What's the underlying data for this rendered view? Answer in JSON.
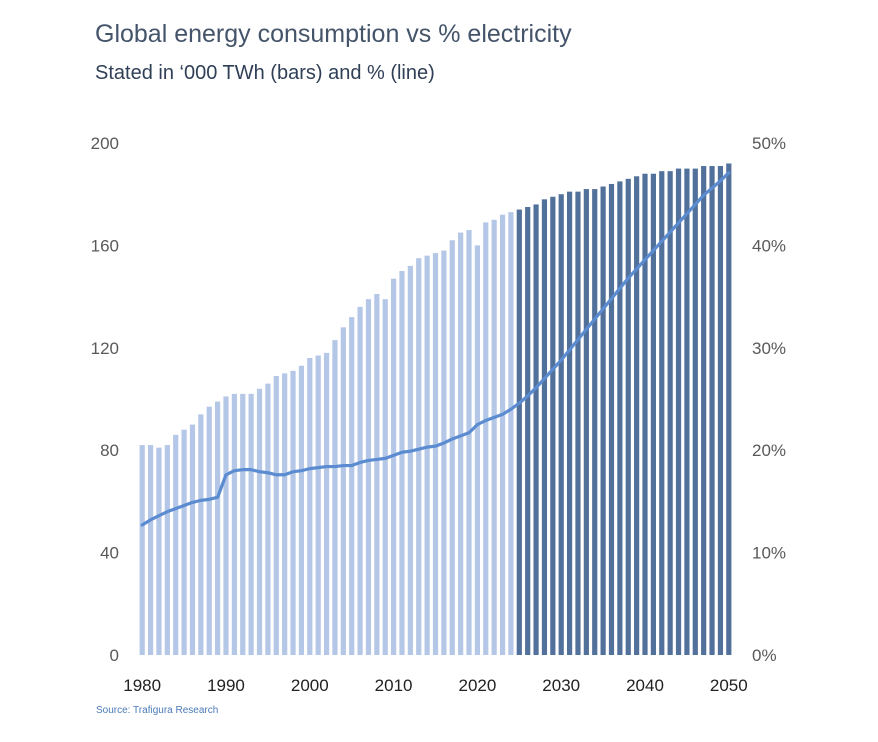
{
  "header": {
    "title": "Global energy consumption vs % electricity",
    "subtitle": "Stated in ‘000 TWh (bars) and % (line)"
  },
  "footer": {
    "source": "Source: Trafigura Research"
  },
  "colors": {
    "historical_bar": "#b4c7e7",
    "forecast_bar": "#52719a",
    "line": "#5b8bd0",
    "tick_text": "#595959"
  },
  "chart_data": {
    "type": "bar",
    "title": "Global energy consumption vs % electricity",
    "subtitle": "Stated in ‘000 TWh (bars) and % (line)",
    "x": [
      1980,
      1981,
      1982,
      1983,
      1984,
      1985,
      1986,
      1987,
      1988,
      1989,
      1990,
      1991,
      1992,
      1993,
      1994,
      1995,
      1996,
      1997,
      1998,
      1999,
      2000,
      2001,
      2002,
      2003,
      2004,
      2005,
      2006,
      2007,
      2008,
      2009,
      2010,
      2011,
      2012,
      2013,
      2014,
      2015,
      2016,
      2017,
      2018,
      2019,
      2020,
      2021,
      2022,
      2023,
      2024,
      2025,
      2026,
      2027,
      2028,
      2029,
      2030,
      2031,
      2032,
      2033,
      2034,
      2035,
      2036,
      2037,
      2038,
      2039,
      2040,
      2041,
      2042,
      2043,
      2044,
      2045,
      2046,
      2047,
      2048,
      2049,
      2050
    ],
    "forecast_start": 2025,
    "series": [
      {
        "kind": "bar",
        "axis": "left",
        "values": [
          82,
          82,
          81,
          82,
          86,
          88,
          90,
          94,
          97,
          99,
          101,
          102,
          102,
          102,
          104,
          106,
          109,
          110,
          111,
          113,
          116,
          117,
          118,
          123,
          128,
          132,
          136,
          139,
          141,
          139,
          147,
          150,
          152,
          155,
          156,
          157,
          158,
          162,
          165,
          166,
          160,
          169,
          170,
          172,
          173,
          174,
          175,
          176,
          178,
          179,
          180,
          181,
          181,
          182,
          182,
          183,
          184,
          185,
          186,
          187,
          188,
          188,
          189,
          189,
          190,
          190,
          190,
          191,
          191,
          191,
          192
        ]
      },
      {
        "kind": "line",
        "axis": "right",
        "values": [
          12.7,
          13.2,
          13.6,
          14.0,
          14.3,
          14.6,
          14.9,
          15.1,
          15.2,
          15.4,
          17.6,
          18.0,
          18.1,
          18.1,
          17.9,
          17.8,
          17.6,
          17.6,
          17.9,
          18.0,
          18.2,
          18.3,
          18.4,
          18.4,
          18.5,
          18.5,
          18.8,
          19.0,
          19.1,
          19.2,
          19.5,
          19.8,
          19.9,
          20.1,
          20.3,
          20.4,
          20.7,
          21.1,
          21.4,
          21.7,
          22.5,
          22.9,
          23.2,
          23.5,
          24.0,
          24.6,
          25.3,
          26.1,
          27.0,
          27.9,
          28.8,
          29.8,
          30.8,
          31.8,
          32.8,
          33.8,
          34.8,
          35.8,
          36.8,
          37.7,
          38.6,
          39.5,
          40.4,
          41.3,
          42.2,
          43.1,
          44.0,
          44.9,
          45.6,
          46.3,
          47.1
        ]
      }
    ],
    "y_left": {
      "ticks": [
        "0",
        "40",
        "80",
        "120",
        "160",
        "200"
      ],
      "ylim": [
        0,
        200
      ]
    },
    "y_right": {
      "ticks": [
        "0%",
        "10%",
        "20%",
        "30%",
        "40%",
        "50%"
      ],
      "ylim": [
        0,
        50
      ]
    },
    "x_ticks": [
      "1980",
      "1990",
      "2000",
      "2010",
      "2020",
      "2030",
      "2040",
      "2050"
    ],
    "grid": false,
    "legend": "none"
  }
}
